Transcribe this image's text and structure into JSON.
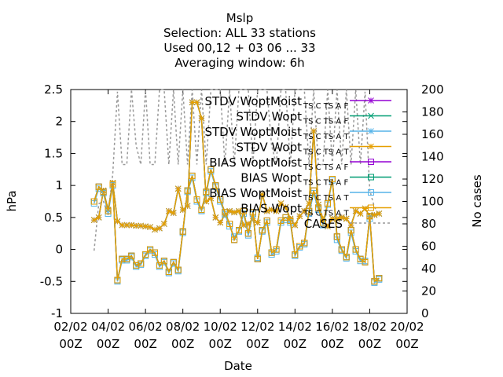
{
  "chart_data": {
    "type": "line",
    "title_lines": [
      "Mslp",
      "Selection: ALL      33 stations",
      "Used  00,12  + 03 06 ... 33",
      "Averaging window:  6h"
    ],
    "xlabel": "Date",
    "ylabel": "hPa",
    "y2label": "No cases",
    "xlim": [
      0,
      18
    ],
    "ylim": [
      -1,
      2.5
    ],
    "y2lim": [
      0,
      200
    ],
    "x_ticks": [
      {
        "x": 0,
        "line1": "02/02",
        "line2": "00Z"
      },
      {
        "x": 2,
        "line1": "04/02",
        "line2": "00Z"
      },
      {
        "x": 4,
        "line1": "06/02",
        "line2": "00Z"
      },
      {
        "x": 6,
        "line1": "08/02",
        "line2": "00Z"
      },
      {
        "x": 8,
        "line1": "10/02",
        "line2": "00Z"
      },
      {
        "x": 10,
        "line1": "12/02",
        "line2": "00Z"
      },
      {
        "x": 12,
        "line1": "14/02",
        "line2": "00Z"
      },
      {
        "x": 14,
        "line1": "16/02",
        "line2": "00Z"
      },
      {
        "x": 16,
        "line1": "18/02",
        "line2": "00Z"
      },
      {
        "x": 18,
        "line1": "20/02",
        "line2": "00Z"
      }
    ],
    "y_ticks": [
      "-1",
      "-0.5",
      "0",
      "0.5",
      "1",
      "1.5",
      "2",
      "2.5"
    ],
    "y2_ticks": [
      "0",
      "20",
      "40",
      "60",
      "80",
      "100",
      "120",
      "140",
      "160",
      "180",
      "200"
    ],
    "legend": [
      {
        "label": "STDV WoptMoist",
        "sub": "TS C TS A F",
        "color": "#9400d3",
        "marker": "star"
      },
      {
        "label": "STDV Wopt",
        "sub": "TS C TS A F",
        "color": "#009e73",
        "marker": "cross"
      },
      {
        "label": "STDV WoptMoist",
        "sub": "TS C TS A T",
        "color": "#56b4e9",
        "marker": "star"
      },
      {
        "label": "STDV Wopt",
        "sub": "TS C TS A T",
        "color": "#e69f00",
        "marker": "star"
      },
      {
        "label": "BIAS WoptMoist",
        "sub": "TS C TS A F",
        "color": "#9400d3",
        "marker": "square"
      },
      {
        "label": "BIAS Wopt",
        "sub": "TS C TS A F",
        "color": "#009e73",
        "marker": "square"
      },
      {
        "label": "BIAS WoptMoist",
        "sub": "TS C TS A T",
        "color": "#56b4e9",
        "marker": "square"
      },
      {
        "label": "BIAS Wopt",
        "sub": "TS C TS A T",
        "color": "#e69f00",
        "marker": "square"
      },
      {
        "label": "CASES",
        "sub": "",
        "color": "#999999",
        "marker": "dash"
      }
    ],
    "x": [
      1.25,
      1.5,
      1.75,
      2.0,
      2.25,
      2.5,
      2.75,
      3.0,
      3.25,
      3.5,
      3.75,
      4.0,
      4.25,
      4.5,
      4.75,
      5.0,
      5.25,
      5.5,
      5.75,
      6.0,
      6.25,
      6.5,
      6.75,
      7.0,
      7.25,
      7.5,
      7.75,
      8.0,
      8.25,
      8.5,
      8.75,
      9.0,
      9.25,
      9.5,
      9.75,
      10.0,
      10.25,
      10.5,
      10.75,
      11.0,
      11.25,
      11.5,
      11.75,
      12.0,
      12.25,
      12.5,
      12.75,
      13.0,
      13.25,
      13.5,
      13.75,
      14.0,
      14.25,
      14.5,
      14.75,
      15.0,
      15.25,
      15.5,
      15.75,
      16.0,
      16.25,
      16.5
    ],
    "series": [
      {
        "name": "STDV WoptMoist TS C TS A F",
        "color": "#9400d3",
        "marker": "star",
        "values": [
          0.46,
          0.5,
          0.92,
          0.62,
          1.04,
          0.44,
          0.38,
          0.38,
          0.38,
          0.37,
          0.37,
          0.36,
          0.35,
          0.31,
          0.33,
          0.4,
          0.6,
          0.57,
          0.95,
          0.62,
          0.68,
          2.3,
          2.3,
          2.05,
          0.75,
          0.8,
          0.5,
          0.42,
          0.54,
          0.6,
          0.58,
          0.6,
          0.38,
          0.4,
          0.48,
          0.42,
          0.86,
          0.6,
          0.62,
          0.6,
          0.72,
          0.66,
          0.48,
          0.38,
          0.52,
          0.6,
          0.72,
          1.85,
          0.7,
          0.48,
          0.36,
          0.48,
          0.48,
          0.5,
          0.48,
          0.38,
          0.6,
          0.56,
          0.64,
          0.52,
          0.54,
          0.56
        ]
      },
      {
        "name": "STDV Wopt TS C TS A F",
        "color": "#009e73",
        "marker": "cross",
        "values": [
          0.46,
          0.5,
          0.92,
          0.62,
          1.04,
          0.44,
          0.38,
          0.38,
          0.38,
          0.37,
          0.37,
          0.36,
          0.35,
          0.31,
          0.33,
          0.4,
          0.6,
          0.57,
          0.95,
          0.62,
          0.68,
          2.3,
          2.3,
          2.05,
          0.75,
          0.8,
          0.5,
          0.42,
          0.54,
          0.6,
          0.58,
          0.6,
          0.38,
          0.4,
          0.48,
          0.42,
          0.86,
          0.6,
          0.62,
          0.6,
          0.72,
          0.66,
          0.48,
          0.38,
          0.52,
          0.6,
          0.72,
          1.85,
          0.7,
          0.48,
          0.36,
          0.48,
          0.48,
          0.5,
          0.48,
          0.38,
          0.6,
          0.56,
          0.64,
          0.52,
          0.54,
          0.56
        ]
      },
      {
        "name": "STDV WoptMoist TS C TS A T",
        "color": "#56b4e9",
        "marker": "star",
        "values": [
          0.46,
          0.5,
          0.92,
          0.62,
          1.04,
          0.44,
          0.38,
          0.38,
          0.38,
          0.37,
          0.37,
          0.36,
          0.35,
          0.31,
          0.33,
          0.4,
          0.6,
          0.57,
          0.95,
          0.62,
          0.68,
          2.3,
          2.3,
          2.05,
          0.75,
          0.8,
          0.5,
          0.42,
          0.54,
          0.6,
          0.58,
          0.6,
          0.38,
          0.4,
          0.48,
          0.42,
          0.86,
          0.6,
          0.62,
          0.6,
          0.72,
          0.66,
          0.48,
          0.38,
          0.52,
          0.6,
          0.72,
          1.85,
          0.7,
          0.48,
          0.36,
          0.48,
          0.48,
          0.5,
          0.48,
          0.38,
          0.6,
          0.56,
          0.64,
          0.52,
          0.54,
          0.56
        ]
      },
      {
        "name": "STDV Wopt TS C TS A T",
        "color": "#e69f00",
        "marker": "star",
        "values": [
          0.46,
          0.5,
          0.92,
          0.62,
          1.04,
          0.44,
          0.38,
          0.38,
          0.38,
          0.37,
          0.37,
          0.36,
          0.35,
          0.31,
          0.33,
          0.4,
          0.6,
          0.57,
          0.95,
          0.62,
          0.68,
          2.3,
          2.3,
          2.05,
          0.75,
          0.8,
          0.5,
          0.42,
          0.54,
          0.6,
          0.58,
          0.6,
          0.38,
          0.4,
          0.48,
          0.42,
          0.86,
          0.6,
          0.62,
          0.6,
          0.72,
          0.66,
          0.48,
          0.38,
          0.52,
          0.6,
          0.72,
          1.85,
          0.7,
          0.48,
          0.36,
          0.48,
          0.48,
          0.5,
          0.48,
          0.38,
          0.6,
          0.56,
          0.64,
          0.52,
          0.54,
          0.56
        ]
      },
      {
        "name": "BIAS WoptMoist TS C TS A F",
        "color": "#9400d3",
        "marker": "square",
        "values": [
          0.75,
          0.98,
          0.9,
          0.6,
          1.02,
          -0.48,
          -0.15,
          -0.15,
          -0.1,
          -0.25,
          -0.22,
          -0.08,
          0.0,
          -0.05,
          -0.25,
          -0.18,
          -0.35,
          -0.2,
          -0.32,
          0.28,
          0.92,
          1.15,
          0.78,
          0.62,
          0.9,
          1.25,
          1.0,
          0.78,
          0.58,
          0.4,
          0.15,
          0.3,
          0.6,
          0.25,
          0.58,
          -0.15,
          0.3,
          0.45,
          -0.05,
          0.0,
          0.45,
          0.5,
          0.45,
          -0.08,
          0.05,
          0.1,
          0.6,
          0.92,
          0.65,
          0.42,
          0.72,
          1.1,
          0.2,
          0.0,
          -0.12,
          0.3,
          0.0,
          -0.15,
          -0.2,
          0.52,
          -0.5,
          -0.45
        ]
      },
      {
        "name": "BIAS Wopt TS C TS A F",
        "color": "#009e73",
        "marker": "square",
        "values": [
          0.75,
          0.98,
          0.9,
          0.6,
          1.02,
          -0.48,
          -0.15,
          -0.15,
          -0.1,
          -0.25,
          -0.22,
          -0.08,
          0.0,
          -0.05,
          -0.25,
          -0.18,
          -0.35,
          -0.2,
          -0.32,
          0.28,
          0.92,
          1.15,
          0.78,
          0.62,
          0.9,
          1.25,
          1.0,
          0.78,
          0.58,
          0.4,
          0.15,
          0.3,
          0.6,
          0.25,
          0.58,
          -0.15,
          0.3,
          0.45,
          -0.05,
          0.0,
          0.45,
          0.5,
          0.45,
          -0.08,
          0.05,
          0.1,
          0.6,
          0.92,
          0.65,
          0.42,
          0.72,
          1.1,
          0.2,
          0.0,
          -0.12,
          0.3,
          0.0,
          -0.15,
          -0.2,
          0.52,
          -0.5,
          -0.45
        ]
      },
      {
        "name": "BIAS WoptMoist TS C TS A T",
        "color": "#56b4e9",
        "marker": "square",
        "values": [
          0.72,
          0.95,
          0.88,
          0.56,
          1.0,
          -0.5,
          -0.17,
          -0.17,
          -0.12,
          -0.27,
          -0.24,
          -0.1,
          -0.02,
          -0.08,
          -0.27,
          -0.2,
          -0.37,
          -0.22,
          -0.34,
          0.26,
          0.9,
          1.12,
          0.75,
          0.6,
          0.88,
          1.22,
          0.98,
          0.75,
          0.55,
          0.36,
          0.2,
          0.28,
          0.56,
          0.22,
          0.55,
          -0.13,
          0.28,
          0.42,
          -0.08,
          -0.03,
          0.42,
          0.46,
          0.42,
          -0.1,
          0.03,
          0.08,
          0.56,
          0.88,
          0.62,
          0.38,
          0.7,
          1.08,
          0.15,
          -0.02,
          -0.14,
          0.26,
          -0.03,
          -0.18,
          -0.18,
          0.48,
          -0.52,
          -0.47
        ]
      },
      {
        "name": "BIAS Wopt TS C TS A T",
        "color": "#e69f00",
        "marker": "square",
        "values": [
          0.75,
          0.98,
          0.9,
          0.6,
          1.02,
          -0.48,
          -0.15,
          -0.15,
          -0.1,
          -0.25,
          -0.22,
          -0.08,
          0.0,
          -0.05,
          -0.25,
          -0.18,
          -0.35,
          -0.2,
          -0.32,
          0.28,
          0.92,
          1.15,
          0.78,
          0.62,
          0.9,
          1.25,
          1.0,
          0.78,
          0.58,
          0.4,
          0.15,
          0.3,
          0.6,
          0.25,
          0.58,
          -0.15,
          0.3,
          0.45,
          -0.05,
          0.0,
          0.45,
          0.5,
          0.45,
          -0.08,
          0.05,
          0.1,
          0.6,
          0.92,
          0.65,
          0.42,
          0.72,
          1.1,
          0.2,
          0.0,
          -0.12,
          0.3,
          0.0,
          -0.15,
          -0.2,
          0.52,
          -0.5,
          -0.45
        ]
      }
    ],
    "cases": {
      "name": "CASES",
      "color": "#999999",
      "axis": "y2",
      "values": [
        56,
        98,
        100,
        88,
        125,
        198,
        133,
        133,
        200,
        150,
        133,
        200,
        133,
        133,
        200,
        200,
        133,
        200,
        133,
        200,
        133,
        200,
        133,
        200,
        133,
        200,
        200,
        200,
        133,
        200,
        133,
        200,
        200,
        200,
        133,
        200,
        200,
        200,
        150,
        133,
        200,
        200,
        133,
        200,
        200,
        200,
        133,
        200,
        133,
        133,
        200,
        133,
        200,
        133,
        200,
        133,
        200,
        133,
        198,
        110,
        95,
        88
      ]
    }
  }
}
